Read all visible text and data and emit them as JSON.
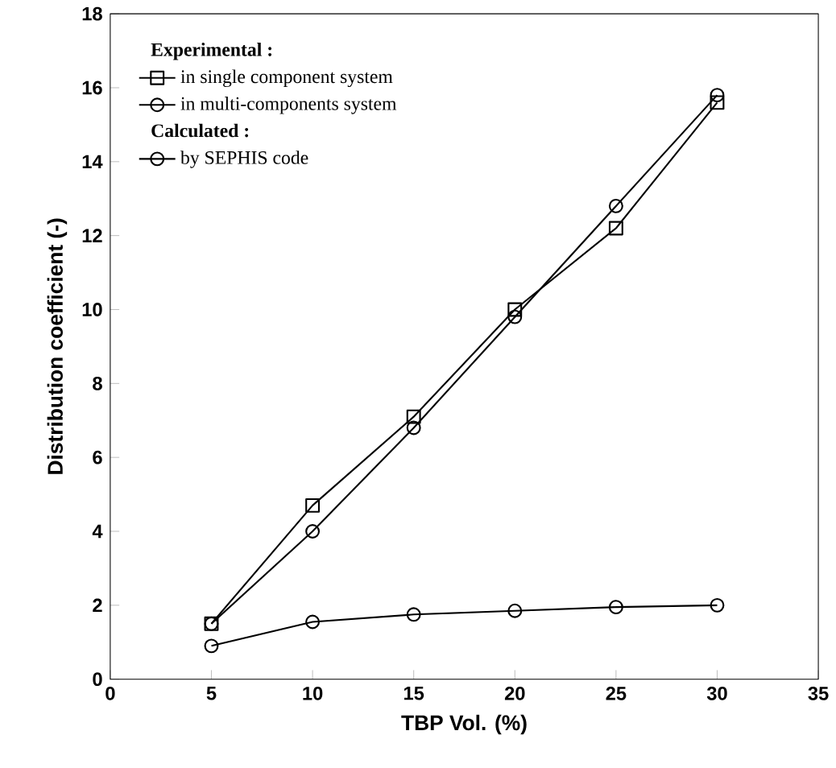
{
  "chart_data": {
    "type": "line",
    "xlabel": "TBP Vol. (%)",
    "ylabel": "Distribution coefficient (-)",
    "xlim": [
      0,
      35
    ],
    "xticks": [
      0,
      5,
      10,
      15,
      20,
      25,
      30,
      35
    ],
    "ylim": [
      0,
      18
    ],
    "yticks": [
      0,
      2,
      4,
      6,
      8,
      10,
      12,
      14,
      16,
      18
    ],
    "x": [
      5,
      10,
      15,
      20,
      25,
      30
    ],
    "series": [
      {
        "name": "in single component system",
        "color": "#000000",
        "marker": "square",
        "values": [
          1.5,
          4.7,
          7.1,
          10.0,
          12.2,
          15.6
        ]
      },
      {
        "name": "in multi-components system",
        "color": "#000000",
        "marker": "circle",
        "values": [
          0.9,
          1.55,
          1.75,
          1.85,
          1.95,
          2.0
        ]
      },
      {
        "name": "by SEPHIS code",
        "color": "#000000",
        "marker": "circle",
        "values": [
          1.5,
          4.0,
          6.8,
          9.8,
          12.8,
          15.8
        ]
      }
    ],
    "annotations": [
      "Experimental :",
      "Calculated :"
    ],
    "legend": "top left",
    "grid": false
  }
}
